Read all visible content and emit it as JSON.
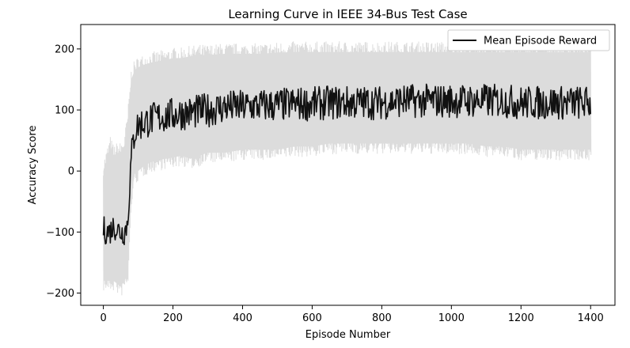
{
  "chart_data": {
    "type": "line",
    "title": "Learning Curve in IEEE 34-Bus Test Case",
    "xlabel": "Episode Number",
    "ylabel": "Accuracy Score",
    "xlim": [
      -65,
      1470
    ],
    "ylim": [
      -220,
      240
    ],
    "xticks": [
      0,
      200,
      400,
      600,
      800,
      1000,
      1200,
      1400
    ],
    "yticks": [
      -200,
      -100,
      0,
      100,
      200
    ],
    "legend": {
      "position": "top-right",
      "entries": [
        "Mean Episode Reward"
      ]
    },
    "grid": false,
    "series": [
      {
        "name": "Mean Episode Reward",
        "color": "#111111",
        "band_color": "#dcdcdc",
        "x": [
          0,
          10,
          20,
          30,
          40,
          50,
          60,
          70,
          80,
          90,
          100,
          120,
          140,
          160,
          180,
          200,
          225,
          250,
          275,
          300,
          350,
          400,
          450,
          500,
          550,
          600,
          650,
          700,
          750,
          800,
          850,
          900,
          950,
          1000,
          1050,
          1100,
          1150,
          1200,
          1250,
          1300,
          1350,
          1400
        ],
        "mean": [
          -95,
          -100,
          -98,
          -90,
          -95,
          -100,
          -100,
          -85,
          20,
          65,
          75,
          80,
          85,
          88,
          90,
          92,
          95,
          95,
          98,
          100,
          105,
          105,
          107,
          108,
          110,
          110,
          112,
          112,
          112,
          112,
          115,
          115,
          115,
          115,
          115,
          115,
          115,
          112,
          112,
          112,
          112,
          112
        ],
        "upper": [
          0,
          20,
          40,
          25,
          30,
          30,
          40,
          80,
          150,
          165,
          170,
          175,
          178,
          180,
          182,
          185,
          185,
          188,
          190,
          190,
          192,
          192,
          192,
          194,
          195,
          195,
          195,
          195,
          195,
          195,
          195,
          195,
          195,
          195,
          195,
          195,
          195,
          195,
          195,
          195,
          195,
          195
        ],
        "lower": [
          -180,
          -180,
          -180,
          -180,
          -185,
          -190,
          -180,
          -170,
          -40,
          -5,
          0,
          10,
          15,
          18,
          20,
          22,
          25,
          20,
          25,
          30,
          30,
          35,
          35,
          35,
          40,
          40,
          45,
          45,
          45,
          45,
          45,
          45,
          45,
          45,
          45,
          40,
          40,
          35,
          35,
          35,
          35,
          35
        ]
      }
    ]
  }
}
